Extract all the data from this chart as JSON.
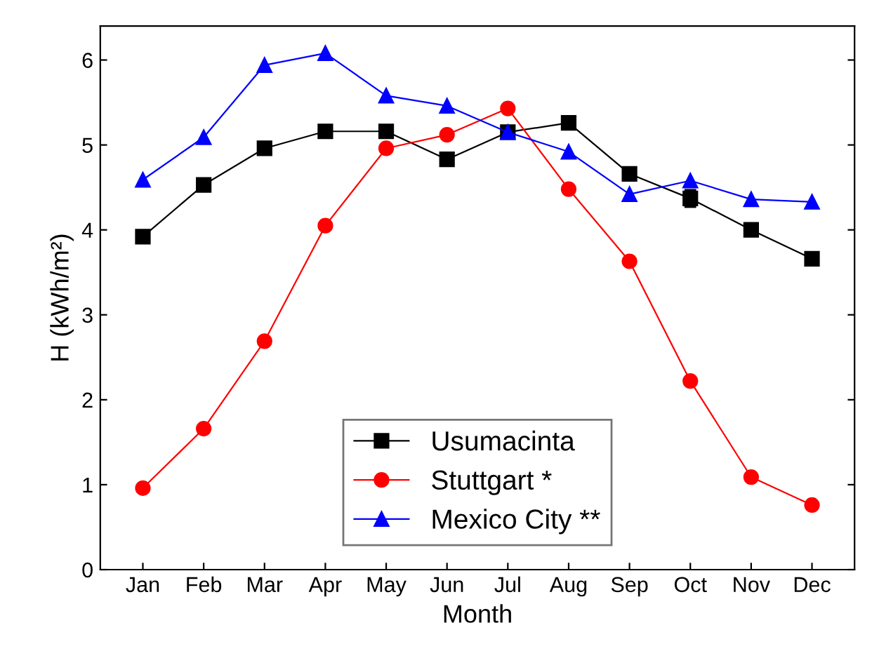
{
  "chart_data": {
    "type": "line",
    "xlabel": "Month",
    "ylabel": "H (kWh/m²)",
    "categories": [
      "Jan",
      "Feb",
      "Mar",
      "Apr",
      "May",
      "Jun",
      "Jul",
      "Aug",
      "Sep",
      "Oct",
      "Nov",
      "Dec"
    ],
    "series": [
      {
        "name": "Usumacinta",
        "color": "#000000",
        "marker": "square",
        "values": [
          3.92,
          4.53,
          4.96,
          5.16,
          5.16,
          4.83,
          5.15,
          5.26,
          4.66,
          4.37,
          4.0,
          3.66
        ],
        "errors": [
          null,
          null,
          null,
          null,
          null,
          null,
          null,
          null,
          null,
          0.1,
          null,
          null
        ]
      },
      {
        "name": "Stuttgart *",
        "color": "#ff0000",
        "marker": "circle",
        "values": [
          0.96,
          1.66,
          2.69,
          4.05,
          4.96,
          5.12,
          5.43,
          4.48,
          3.63,
          2.22,
          1.09,
          0.76
        ]
      },
      {
        "name": "Mexico City **",
        "color": "#0000ff",
        "marker": "triangle",
        "values": [
          4.59,
          5.09,
          5.94,
          6.08,
          5.58,
          5.46,
          5.15,
          4.92,
          4.42,
          4.58,
          4.36,
          4.33
        ]
      }
    ],
    "ylim": [
      0,
      6.4
    ],
    "yticks": [
      0,
      1,
      2,
      3,
      4,
      5,
      6
    ],
    "grid": false,
    "legend": "bottom",
    "line_style": "solid"
  }
}
